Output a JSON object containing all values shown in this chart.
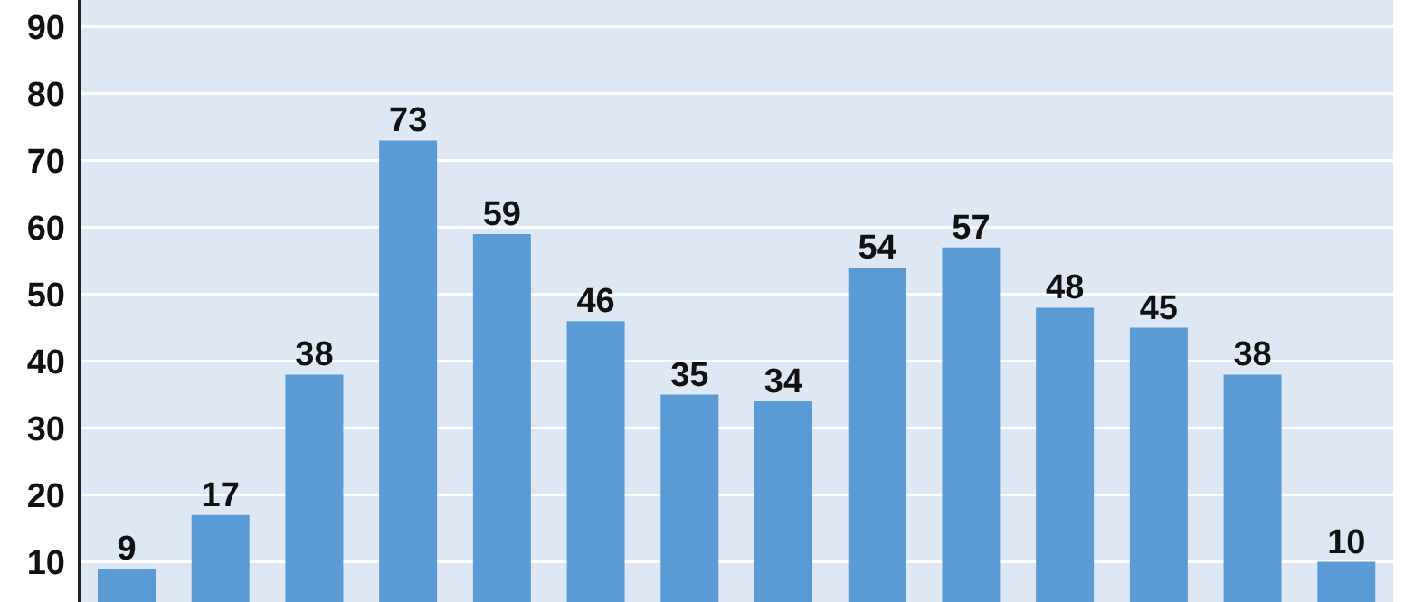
{
  "chart_data": {
    "type": "bar",
    "categories": [
      null,
      null,
      null,
      null,
      null,
      null,
      null,
      null,
      null,
      null,
      null,
      null,
      null,
      null
    ],
    "values": [
      9,
      17,
      38,
      73,
      59,
      46,
      35,
      34,
      54,
      57,
      48,
      45,
      38,
      10
    ],
    "color": "#5b9bd5",
    "ylim": [
      4,
      94
    ],
    "yticks": [
      10,
      20,
      30,
      40,
      50,
      60,
      70,
      80,
      90
    ],
    "grid": "y",
    "data_labels": true,
    "tick_labels": "y"
  }
}
